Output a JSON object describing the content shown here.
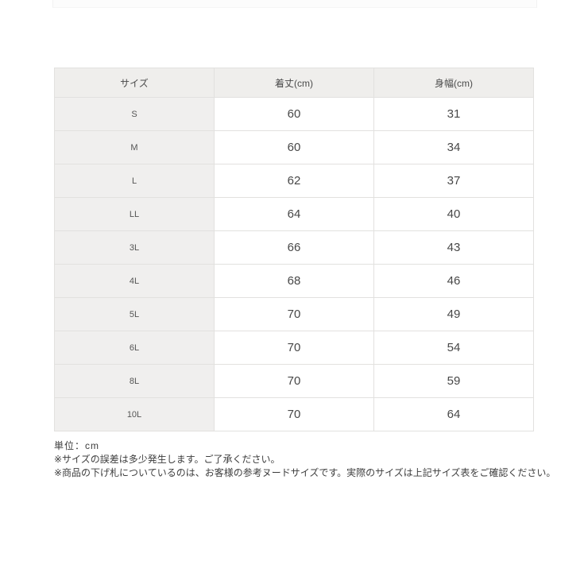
{
  "table": {
    "headers": [
      "サイズ",
      "着丈(cm)",
      "身幅(cm)"
    ],
    "rows": [
      {
        "size": "S",
        "length": "60",
        "width": "31"
      },
      {
        "size": "M",
        "length": "60",
        "width": "34"
      },
      {
        "size": "L",
        "length": "62",
        "width": "37"
      },
      {
        "size": "LL",
        "length": "64",
        "width": "40"
      },
      {
        "size": "3L",
        "length": "66",
        "width": "43"
      },
      {
        "size": "4L",
        "length": "68",
        "width": "46"
      },
      {
        "size": "5L",
        "length": "70",
        "width": "49"
      },
      {
        "size": "6L",
        "length": "70",
        "width": "54"
      },
      {
        "size": "8L",
        "length": "70",
        "width": "59"
      },
      {
        "size": "10L",
        "length": "70",
        "width": "64"
      }
    ]
  },
  "notes": {
    "unit": "単位：cm",
    "note1": "※サイズの誤差は多少発生します。ご了承ください。",
    "note2": "※商品の下げ札についているのは、お客様の参考ヌードサイズです。実際のサイズは上記サイズ表をご確認ください。"
  },
  "colors": {
    "header_bg": "#efeeec",
    "size_col_bg": "#f0efee",
    "border": "#e2e1df",
    "text": "#474747"
  }
}
